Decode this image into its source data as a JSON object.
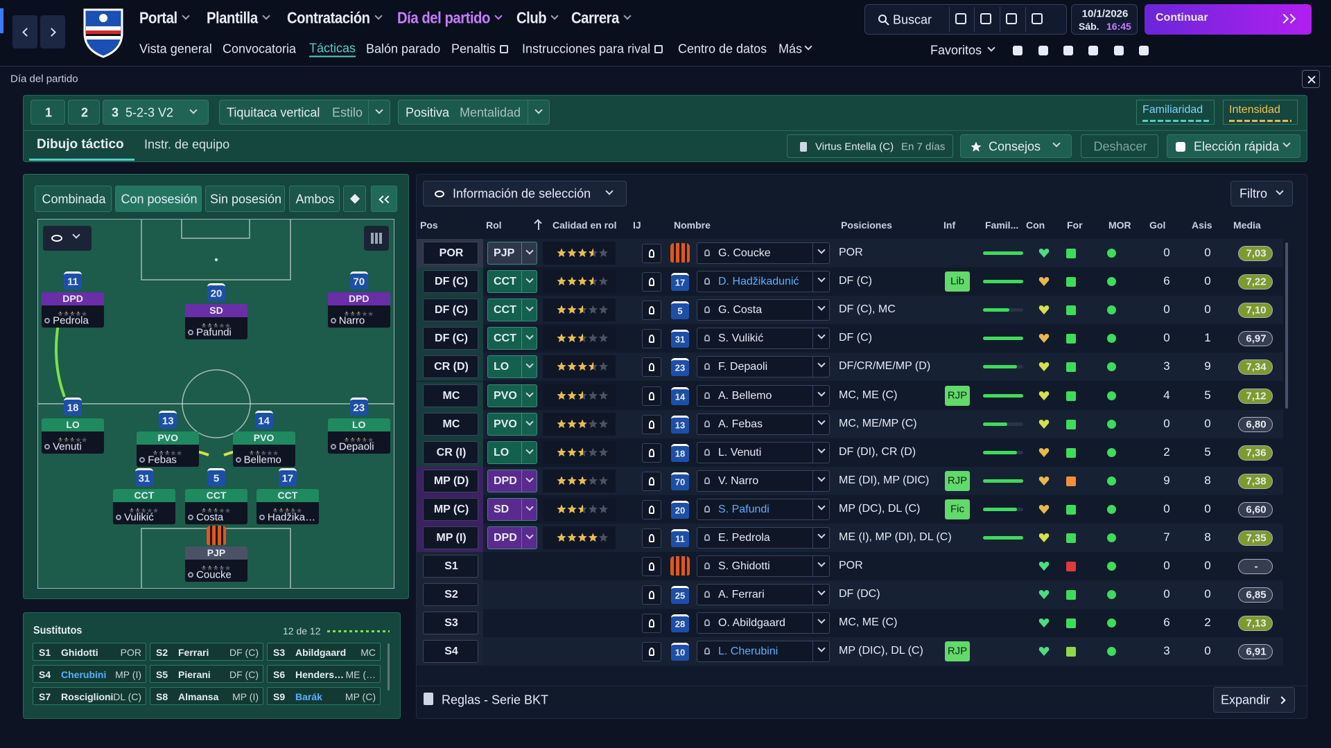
{
  "header": {
    "menu": [
      "Portal",
      "Plantilla",
      "Contratación",
      "Día del partido",
      "Club",
      "Carrera"
    ],
    "submenu": [
      "Vista general",
      "Convocatoria",
      "Tácticas",
      "Balón parado",
      "Penaltis",
      "Instrucciones para rival",
      "Centro de datos",
      "Más"
    ],
    "search": "Buscar",
    "date": "10/1/2026",
    "day": "Sáb.",
    "time": "16:45",
    "continue": "Continuar",
    "favorites": "Favoritos"
  },
  "page_title": "Día del partido",
  "tactics": {
    "slots": [
      "1",
      "2",
      "3"
    ],
    "formation": "5-2-3 V2",
    "style": "Tiquitaca vertical",
    "style_label": "Estilo",
    "mentality": "Positiva",
    "mentality_label": "Mentalidad",
    "familiarity": "Familiaridad",
    "intensity": "Intensidad",
    "tabs": [
      "Dibujo táctico",
      "Instr. de equipo"
    ],
    "next_match": "Virtus Entella (C)",
    "next_match_when": "En 7 días",
    "advice": "Consejos",
    "undo": "Deshacer",
    "quick_pick": "Elección rápida"
  },
  "pitch": {
    "views": [
      "Combinada",
      "Con posesión",
      "Sin posesión",
      "Ambos"
    ],
    "players": [
      {
        "number": 11,
        "role": "DPD",
        "quality": 4,
        "name": "Pedrola"
      },
      {
        "number": 20,
        "role": "SD",
        "quality": 2.5,
        "name": "Pafundi"
      },
      {
        "number": 70,
        "role": "DPD",
        "quality": 3,
        "name": "Narro"
      },
      {
        "number": 18,
        "role": "LO",
        "quality": 2.5,
        "name": "Venuti"
      },
      {
        "number": 13,
        "role": "PVO",
        "quality": 3,
        "name": "Febas"
      },
      {
        "number": 14,
        "role": "PVO",
        "quality": 2.5,
        "name": "Bellemo"
      },
      {
        "number": 23,
        "role": "LO",
        "quality": 3.5,
        "name": "Depaoli"
      },
      {
        "number": 31,
        "role": "CCT",
        "quality": 2.5,
        "name": "Vulikić"
      },
      {
        "number": 5,
        "role": "CCT",
        "quality": 2.5,
        "name": "Costa"
      },
      {
        "number": 17,
        "role": "CCT",
        "quality": 3.5,
        "name": "Hadžika…"
      },
      {
        "number": null,
        "role": "PJP",
        "quality": 3.5,
        "name": "Coucke"
      }
    ]
  },
  "subs": {
    "title": "Sustitutos",
    "count": "12 de 12",
    "players": [
      {
        "slot": "S1",
        "name": "Ghidotti",
        "position": "POR"
      },
      {
        "slot": "S2",
        "name": "Ferrari",
        "position": "DF (C)"
      },
      {
        "slot": "S3",
        "name": "Abildgaard",
        "position": "MC"
      },
      {
        "slot": "S4",
        "name": "Cherubini",
        "position": "MP (I)"
      },
      {
        "slot": "S5",
        "name": "Pierani",
        "position": "DF (C)"
      },
      {
        "slot": "S6",
        "name": "Henders…",
        "position": "ME (…"
      },
      {
        "slot": "S7",
        "name": "Rosciglioni",
        "position": "DL (C)"
      },
      {
        "slot": "S8",
        "name": "Almansa",
        "position": "MP (I)"
      },
      {
        "slot": "S9",
        "name": "Barák",
        "position": "MP (C)"
      }
    ]
  },
  "table": {
    "dropdown": "Información de selección",
    "filter": "Filtro",
    "columns": [
      "Pos",
      "Rol",
      "Calidad en rol",
      "IJ",
      "Nombre",
      "Posiciones",
      "Inf",
      "Famil...",
      "Con",
      "For",
      "MOR",
      "Gol",
      "Asis",
      "Media"
    ],
    "rows": [
      {
        "pos": "POR",
        "role": "PJP",
        "quality": 3.5,
        "shirt": null,
        "name": "G. Coucke",
        "positions": "POR",
        "inf": null,
        "familiarity": 100,
        "goals": 0,
        "assists": 0,
        "rating": "7,03"
      },
      {
        "pos": "DF (C)",
        "role": "CCT",
        "quality": 3.5,
        "shirt": 17,
        "name": "D. Hadžikadunić",
        "positions": "DF (C)",
        "inf": "Lib",
        "familiarity": 100,
        "goals": 6,
        "assists": 0,
        "rating": "7,22"
      },
      {
        "pos": "DF (C)",
        "role": "CCT",
        "quality": 2.5,
        "shirt": 5,
        "name": "G. Costa",
        "positions": "DF (C), MC",
        "inf": null,
        "familiarity": 65,
        "goals": 0,
        "assists": 0,
        "rating": "7,10"
      },
      {
        "pos": "DF (C)",
        "role": "CCT",
        "quality": 2.5,
        "shirt": 31,
        "name": "S. Vulikić",
        "positions": "DF (C)",
        "inf": null,
        "familiarity": 100,
        "goals": 0,
        "assists": 1,
        "rating": "6,97"
      },
      {
        "pos": "CR (D)",
        "role": "LO",
        "quality": 3.5,
        "shirt": 23,
        "name": "F. Depaoli",
        "positions": "DF/CR/ME/MP (D)",
        "inf": null,
        "familiarity": 85,
        "goals": 3,
        "assists": 9,
        "rating": "7,34"
      },
      {
        "pos": "MC",
        "role": "PVO",
        "quality": 2.5,
        "shirt": 14,
        "name": "A. Bellemo",
        "positions": "MC, ME (C)",
        "inf": "RJP",
        "familiarity": 100,
        "goals": 4,
        "assists": 5,
        "rating": "7,12"
      },
      {
        "pos": "MC",
        "role": "PVO",
        "quality": 3,
        "shirt": 13,
        "name": "A. Febas",
        "positions": "MC, ME/MP (C)",
        "inf": null,
        "familiarity": 60,
        "goals": 0,
        "assists": 0,
        "rating": "6,80"
      },
      {
        "pos": "CR (I)",
        "role": "LO",
        "quality": 2.5,
        "shirt": 18,
        "name": "L. Venuti",
        "positions": "DF (DI), CR (D)",
        "inf": null,
        "familiarity": 85,
        "goals": 2,
        "assists": 5,
        "rating": "7,36"
      },
      {
        "pos": "MP (D)",
        "role": "DPD",
        "quality": 3,
        "shirt": 70,
        "name": "V. Narro",
        "positions": "ME (DI), MP (DIC)",
        "inf": "RJP",
        "familiarity": 100,
        "goals": 9,
        "assists": 8,
        "rating": "7,38"
      },
      {
        "pos": "MP (C)",
        "role": "SD",
        "quality": 2.5,
        "shirt": 20,
        "name": "S. Pafundi",
        "positions": "MP (DC), DL (C)",
        "inf": "Fic",
        "familiarity": 85,
        "goals": 0,
        "assists": 0,
        "rating": "6,60"
      },
      {
        "pos": "MP (I)",
        "role": "DPD",
        "quality": 4,
        "shirt": 11,
        "name": "E. Pedrola",
        "positions": "ME (I), MP (DI), DL (C)",
        "inf": null,
        "familiarity": 100,
        "goals": 7,
        "assists": 8,
        "rating": "7,35"
      },
      {
        "pos": "S1",
        "role": null,
        "quality": null,
        "shirt": null,
        "name": "S. Ghidotti",
        "positions": "POR",
        "inf": null,
        "familiarity": null,
        "goals": 0,
        "assists": 0,
        "rating": "-"
      },
      {
        "pos": "S2",
        "role": null,
        "quality": null,
        "shirt": 25,
        "name": "A. Ferrari",
        "positions": "DF (DC)",
        "inf": null,
        "familiarity": null,
        "goals": 0,
        "assists": 0,
        "rating": "6,85"
      },
      {
        "pos": "S3",
        "role": null,
        "quality": null,
        "shirt": 28,
        "name": "O. Abildgaard",
        "positions": "MC, ME (C)",
        "inf": null,
        "familiarity": null,
        "goals": 6,
        "assists": 2,
        "rating": "7,13"
      },
      {
        "pos": "S4",
        "role": null,
        "quality": null,
        "shirt": 10,
        "name": "L. Cherubini",
        "positions": "MP (DIC), DL (C)",
        "inf": "RJP",
        "familiarity": null,
        "goals": 3,
        "assists": 0,
        "rating": "6,91"
      }
    ],
    "footer": "Reglas - Serie BKT",
    "expand": "Expandir"
  }
}
